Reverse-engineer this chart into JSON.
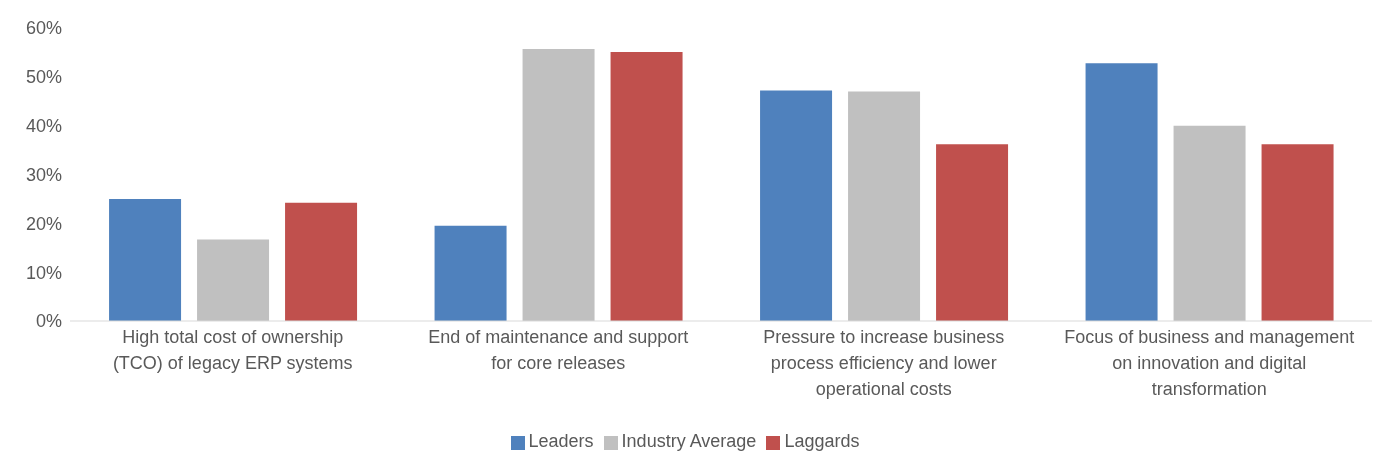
{
  "chart_data": {
    "type": "bar",
    "categories": [
      "High total cost of ownership (TCO) of legacy ERP systems",
      "End of maintenance and support for core releases",
      "Pressure to increase business process efficiency and lower operational costs",
      "Focus of business and management on innovation and digital transformation"
    ],
    "series": [
      {
        "name": "Leaders",
        "color": "#4f81bd",
        "values": [
          25.0,
          19.5,
          47.2,
          52.8
        ]
      },
      {
        "name": "Industry Average",
        "color": "#c0c0c0",
        "values": [
          16.7,
          55.7,
          47.0,
          40.0
        ]
      },
      {
        "name": "Laggards",
        "color": "#c0504d",
        "values": [
          24.2,
          55.1,
          36.2,
          36.2
        ]
      }
    ],
    "ylim": [
      0,
      60
    ],
    "yticks": [
      {
        "value": 0,
        "label": "0%"
      },
      {
        "value": 10,
        "label": "10%"
      },
      {
        "value": 20,
        "label": "20%"
      },
      {
        "value": 30,
        "label": "30%"
      },
      {
        "value": 40,
        "label": "40%"
      },
      {
        "value": 50,
        "label": "50%"
      },
      {
        "value": 60,
        "label": "60%"
      }
    ],
    "grid": false,
    "legend": "bottom"
  }
}
